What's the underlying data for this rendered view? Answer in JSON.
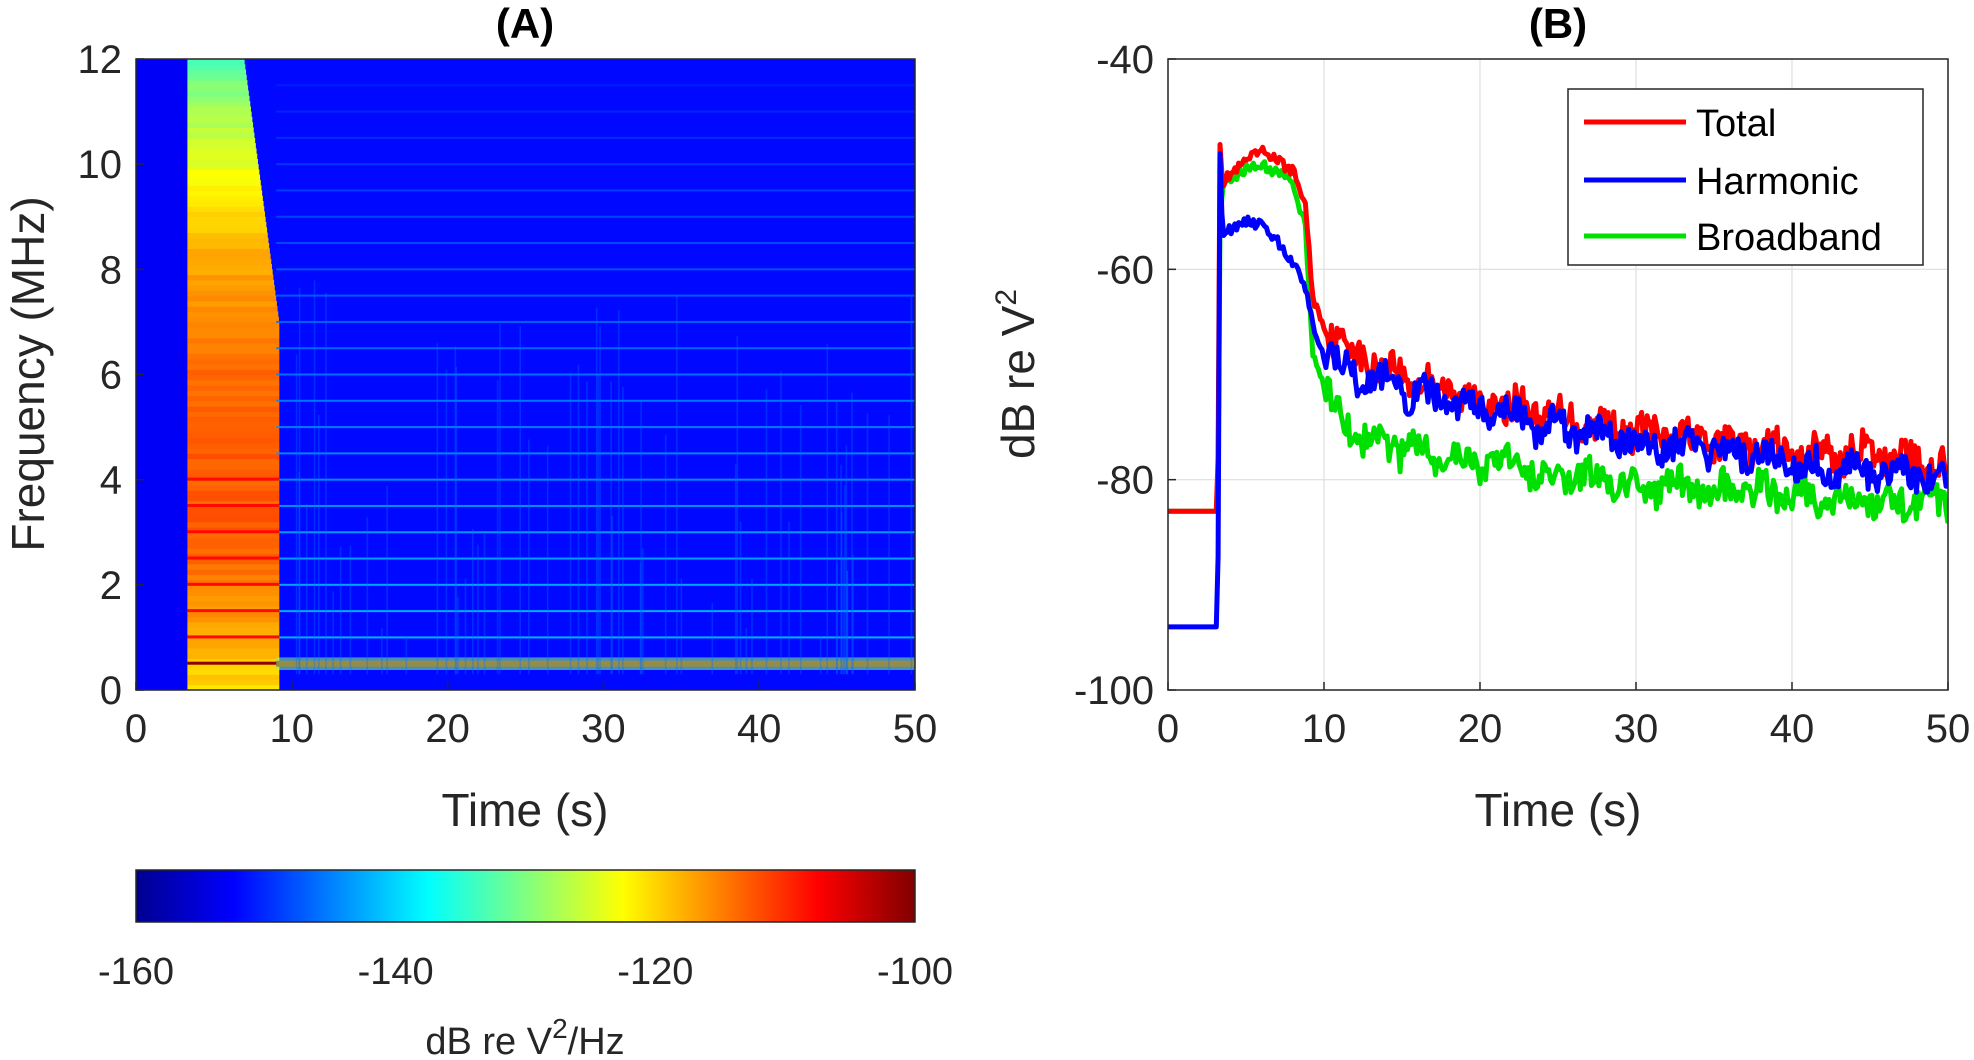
{
  "chart_data": [
    {
      "type": "heatmap",
      "title": "(A)",
      "xlabel": "Time (s)",
      "ylabel": "Frequency (MHz)",
      "xlim": [
        0,
        50
      ],
      "ylim": [
        0,
        12
      ],
      "xticks": [
        "0",
        "10",
        "20",
        "30",
        "40",
        "50"
      ],
      "yticks": [
        "0",
        "2",
        "4",
        "6",
        "8",
        "10",
        "12"
      ],
      "colormap": "jet",
      "clim": [
        -160,
        -100
      ],
      "colorbar": {
        "ticks": [
          "-160",
          "-140",
          "-120",
          "-100"
        ],
        "label_main": "dB re V",
        "label_sup": "2",
        "label_tail": "/Hz"
      },
      "event_start_s": 3.3,
      "event_broadband_end_s": 9.2,
      "fundamental_mhz": 0.5,
      "harmonic_spacing_mhz": 0.5,
      "background_level_db": -152,
      "peak_level_db": -113
    },
    {
      "type": "line",
      "title": "(B)",
      "xlabel": "Time (s)",
      "ylabel_main": "dB re V",
      "ylabel_sup": "2",
      "xlim": [
        0,
        50
      ],
      "ylim": [
        -100,
        -40
      ],
      "xticks": [
        "0",
        "10",
        "20",
        "30",
        "40",
        "50"
      ],
      "yticks": [
        "-40",
        "-60",
        "-80",
        "-100"
      ],
      "grid": true,
      "legend_position": "top-right",
      "series": [
        {
          "name": "Total",
          "color": "#ff0000",
          "x": [
            0,
            3.2,
            3.3,
            3.5,
            4,
            5,
            6,
            7,
            8,
            8.8,
            9.3,
            10,
            11,
            12,
            15,
            20,
            25,
            30,
            35,
            40,
            45,
            48,
            50
          ],
          "y": [
            -83,
            -83,
            -47,
            -52,
            -51,
            -49.5,
            -49,
            -49.5,
            -50.5,
            -54,
            -63,
            -65,
            -67,
            -68,
            -70,
            -72.5,
            -74,
            -75.5,
            -76.5,
            -77.5,
            -77.5,
            -78,
            -79
          ]
        },
        {
          "name": "Harmonic",
          "color": "#0000ff",
          "x": [
            0,
            3.2,
            3.3,
            3.5,
            4,
            5,
            6,
            7,
            8,
            8.8,
            9.3,
            10,
            11,
            12,
            15,
            20,
            25,
            30,
            35,
            40,
            45,
            48,
            50
          ],
          "y": [
            -94,
            -94,
            -47,
            -57,
            -56,
            -55.5,
            -56,
            -57,
            -59.5,
            -62,
            -65,
            -68,
            -69,
            -70,
            -71.5,
            -73.5,
            -75,
            -76.5,
            -77,
            -78.5,
            -79,
            -79.5,
            -80.5
          ]
        },
        {
          "name": "Broadband",
          "color": "#00e000",
          "x": [
            0,
            3.2,
            3.3,
            3.5,
            4,
            5,
            6,
            7,
            8,
            8.8,
            9.3,
            10,
            11,
            12,
            15,
            20,
            25,
            30,
            35,
            40,
            45,
            48,
            50
          ],
          "y": [
            -83,
            -83,
            -56,
            -52,
            -51.5,
            -50.5,
            -50,
            -50.5,
            -52,
            -56,
            -68,
            -71,
            -74,
            -75.5,
            -77,
            -78.5,
            -79.5,
            -80.5,
            -81,
            -81.5,
            -82,
            -82,
            -82.5
          ]
        }
      ]
    }
  ]
}
